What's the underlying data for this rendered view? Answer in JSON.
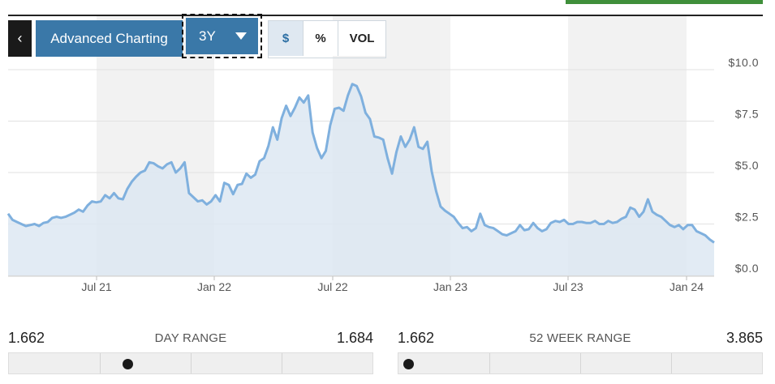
{
  "toolbar": {
    "back_icon": "chevron-left-icon",
    "back_label": "‹",
    "advanced_label": "Advanced Charting",
    "range_label": "3Y",
    "toggles": [
      {
        "label": "$",
        "active": true
      },
      {
        "label": "%",
        "active": false
      },
      {
        "label": "VOL",
        "active": false
      }
    ]
  },
  "chart_data": {
    "type": "area",
    "title": "",
    "xlabel": "",
    "ylabel": "",
    "ylim": [
      0,
      10
    ],
    "yticks": [
      0,
      2.5,
      5,
      7.5,
      10
    ],
    "ytick_labels": [
      "$0.0",
      "$2.5",
      "$5.0",
      "$7.5",
      "$10.0"
    ],
    "xtick_labels": [
      "Jul 21",
      "Jan 22",
      "Jul 22",
      "Jan 23",
      "Jul 23",
      "Jan 24"
    ],
    "grid": true,
    "line_color": "#7fb0de",
    "fill_color": "#dde8f2",
    "shade_color": "#f2f2f2",
    "series": [
      {
        "values": [
          3.0,
          2.7,
          2.6,
          2.5,
          2.4,
          2.45,
          2.5,
          2.4,
          2.55,
          2.6,
          2.8,
          2.85,
          2.8,
          2.85,
          2.95,
          3.05,
          3.2,
          3.1,
          3.4,
          3.6,
          3.55,
          3.6,
          3.9,
          3.75,
          4.0,
          3.75,
          3.7,
          4.2,
          4.55,
          4.8,
          5.0,
          5.1,
          5.5,
          5.45,
          5.3,
          5.2,
          5.4,
          5.5,
          5.0,
          5.2,
          5.5,
          4.0,
          3.8,
          3.6,
          3.65,
          3.45,
          3.6,
          3.9,
          3.6,
          4.5,
          4.4,
          3.95,
          4.4,
          4.45,
          4.95,
          4.75,
          4.9,
          5.55,
          5.7,
          6.3,
          7.2,
          6.6,
          7.65,
          8.25,
          7.75,
          8.15,
          8.65,
          8.4,
          8.75,
          6.95,
          6.2,
          5.7,
          6.05,
          7.3,
          8.1,
          8.15,
          8.0,
          8.75,
          9.3,
          9.2,
          8.7,
          7.9,
          7.6,
          6.75,
          6.7,
          6.6,
          5.7,
          4.95,
          6.0,
          6.75,
          6.25,
          6.6,
          7.2,
          6.25,
          6.15,
          6.5,
          5.05,
          4.1,
          3.35,
          3.15,
          3.0,
          2.85,
          2.55,
          2.3,
          2.35,
          2.15,
          2.3,
          3.0,
          2.45,
          2.35,
          2.3,
          2.15,
          2.0,
          1.95,
          2.05,
          2.15,
          2.45,
          2.2,
          2.25,
          2.55,
          2.3,
          2.15,
          2.25,
          2.55,
          2.65,
          2.6,
          2.7,
          2.5,
          2.5,
          2.6,
          2.6,
          2.55,
          2.55,
          2.65,
          2.5,
          2.5,
          2.65,
          2.55,
          2.6,
          2.75,
          2.85,
          3.3,
          3.2,
          2.85,
          3.1,
          3.7,
          3.1,
          2.95,
          2.85,
          2.65,
          2.45,
          2.35,
          2.45,
          2.25,
          2.45,
          2.45,
          2.15,
          2.05,
          1.95,
          1.75,
          1.6
        ]
      }
    ]
  },
  "day_range": {
    "low": "1.662",
    "title": "DAY RANGE",
    "high": "1.684",
    "position": 0.0
  },
  "week52_range": {
    "low": "1.662",
    "title": "52 WEEK RANGE",
    "high": "3.865",
    "position": 0.0
  }
}
